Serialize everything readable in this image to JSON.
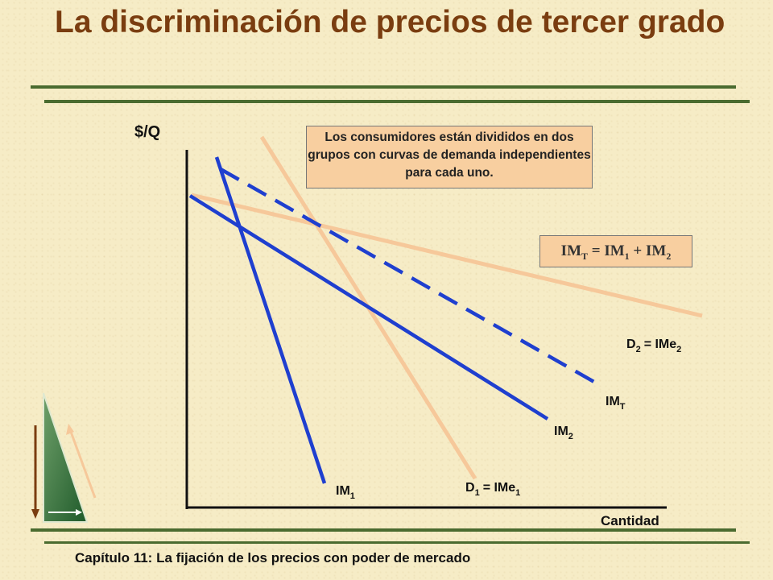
{
  "slide": {
    "title": "La discriminación de precios de tercer grado",
    "footer": "Capítulo 11: La fijación de los precios con poder de mercado"
  },
  "diagram": {
    "y_axis_label": "$/Q",
    "x_axis_label": "Cantidad",
    "callout": "Los consumidores están divididos en dos grupos con curvas de demanda independientes para cada uno.",
    "formula": {
      "lhs": "IM",
      "lhs_sub": "T",
      "eq": "=",
      "t1": "IM",
      "t1_sub": "1",
      "plus": "+",
      "t2": "IM",
      "t2_sub": "2"
    },
    "curves": {
      "d2": {
        "main": "D",
        "sub": "2",
        "eq": "= IMe",
        "sub2": "2"
      },
      "imt": {
        "main": "IM",
        "sub": "T"
      },
      "im2": {
        "main": "IM",
        "sub": "2"
      },
      "d1": {
        "main": "D",
        "sub": "1",
        "eq": "= IMe",
        "sub2": "1"
      },
      "im1": {
        "main": "IM",
        "sub": "1"
      }
    },
    "colors": {
      "demand": "#f6c89a",
      "marginal": "#1f3fcf",
      "axis": "#111111",
      "title": "#7a3d10",
      "rule": "#4a6b2f"
    }
  }
}
